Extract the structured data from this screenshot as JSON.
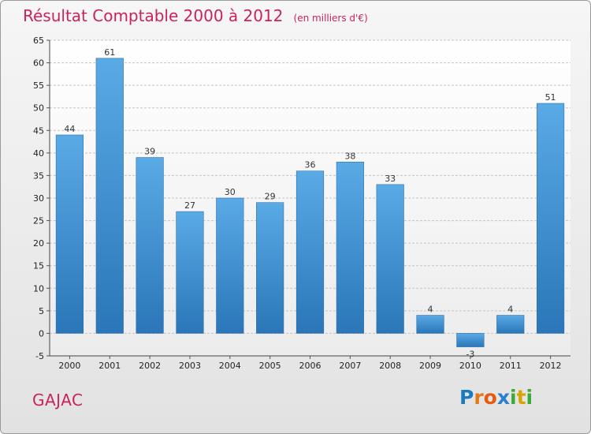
{
  "header": {
    "title": "Résultat Comptable 2000 à 2012",
    "subtitle": "(en milliers d'€)"
  },
  "footer": {
    "commune": "GAJAC",
    "brand_letters": [
      "P",
      "r",
      "o",
      "x",
      "i",
      "t",
      "i"
    ],
    "brand_colors": [
      "#1a7cc0",
      "#e07a1a",
      "#e85a10",
      "#2a7fd0",
      "#3aaa3a",
      "#d8a400",
      "#3aaa3a"
    ]
  },
  "chart_data": {
    "type": "bar",
    "categories": [
      "2000",
      "2001",
      "2002",
      "2003",
      "2004",
      "2005",
      "2006",
      "2007",
      "2008",
      "2009",
      "2010",
      "2011",
      "2012"
    ],
    "values": [
      44,
      61,
      39,
      27,
      30,
      29,
      36,
      38,
      33,
      4,
      -3,
      4,
      51
    ],
    "data_labels": [
      "44",
      "61",
      "39",
      "27",
      "30",
      "29",
      "36",
      "38",
      "33",
      "4",
      "-3",
      "4",
      "51"
    ],
    "yticks": [
      "-5",
      "0",
      "5",
      "10",
      "15",
      "20",
      "25",
      "30",
      "35",
      "40",
      "45",
      "50",
      "55",
      "60",
      "65"
    ],
    "ylim": [
      -5,
      65
    ],
    "grid": true,
    "bar_color_top": "#5aaae6",
    "bar_color_bottom": "#2a76b8"
  }
}
